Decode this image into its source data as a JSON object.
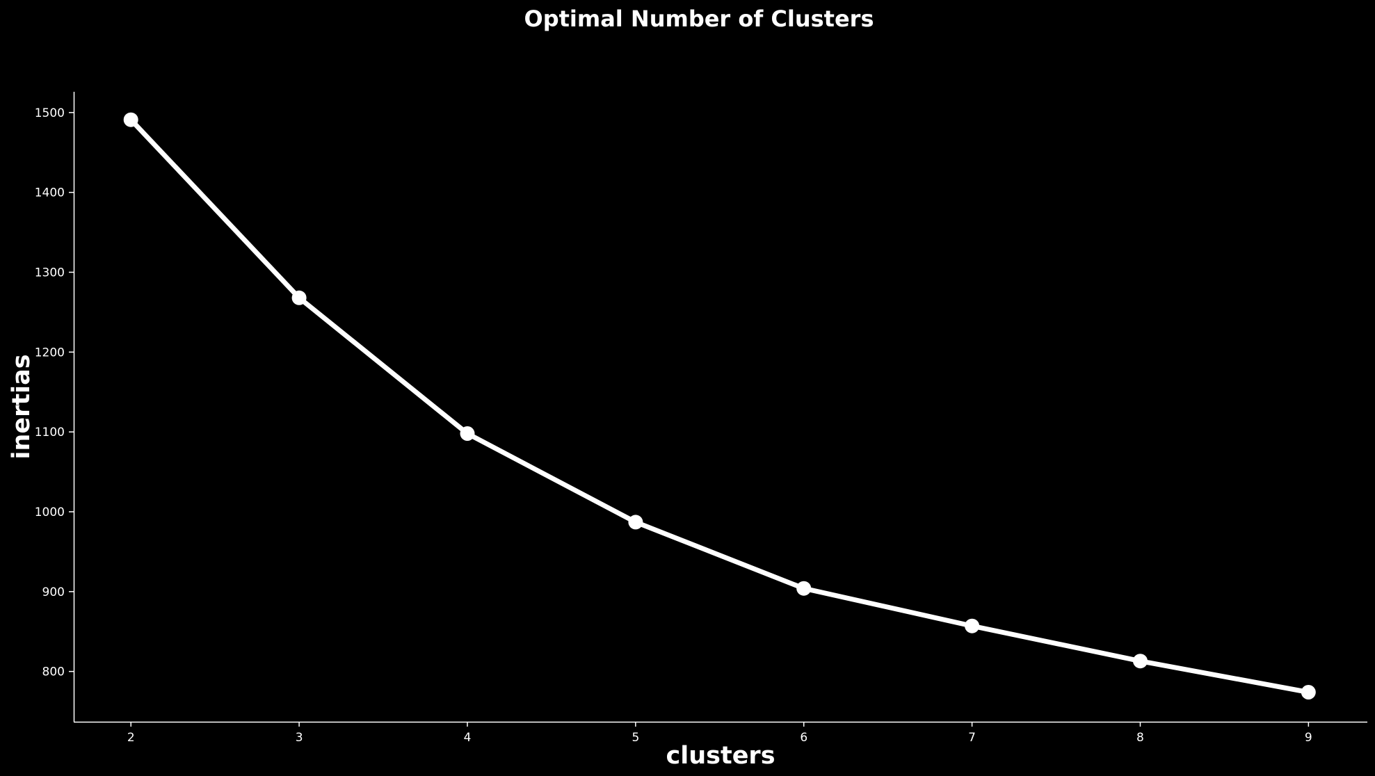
{
  "chart_data": {
    "type": "line",
    "title": "Optimal Number of Clusters",
    "xlabel": "clusters",
    "ylabel": "inertias",
    "x": [
      2,
      3,
      4,
      5,
      6,
      7,
      8,
      9
    ],
    "series": [
      {
        "values": [
          1491,
          1268,
          1098,
          987,
          904,
          857,
          813,
          774
        ]
      }
    ],
    "xticks": [
      2,
      3,
      4,
      5,
      6,
      7,
      8,
      9
    ],
    "yticks": [
      800,
      900,
      1000,
      1100,
      1200,
      1300,
      1400,
      1500
    ],
    "xlim": [
      1.66,
      9.35
    ],
    "ylim": [
      737,
      1526
    ],
    "grid": false,
    "marker": "circle",
    "colors": {
      "background": "#000000",
      "line": "#ffffff",
      "text": "#ffffff"
    }
  }
}
